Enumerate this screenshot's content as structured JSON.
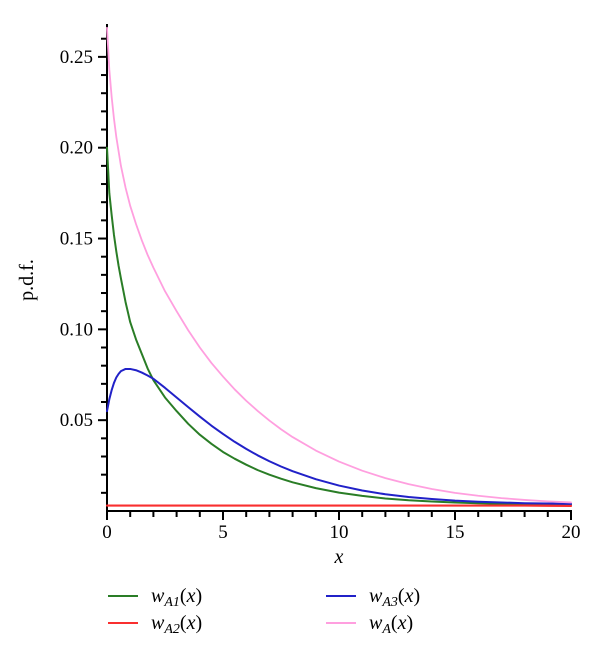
{
  "figure": {
    "background": "#ffffff"
  },
  "chart_data": {
    "type": "line",
    "title": "",
    "xlabel": "x",
    "ylabel": "p.d.f.",
    "xlim": [
      0,
      20
    ],
    "ylim": [
      0,
      0.267
    ],
    "grid": false,
    "legend_position": "below-plot, two columns",
    "axis_color": "#000000",
    "x_major_ticks": [
      0,
      5,
      10,
      15,
      20
    ],
    "x_tick_labels": [
      "0",
      "5",
      "10",
      "15",
      "20"
    ],
    "x_minor_step": 1,
    "y_major_ticks": [
      0.05,
      0.1,
      0.15,
      0.2,
      0.25
    ],
    "y_tick_labels": [
      "0.05",
      "0.10",
      "0.15",
      "0.20",
      "0.25"
    ],
    "y_minor_step": 0.01,
    "x": [
      0,
      0.1,
      0.2,
      0.3,
      0.4,
      0.5,
      0.6,
      0.8,
      1,
      1.25,
      1.5,
      1.75,
      2,
      2.5,
      3,
      3.5,
      4,
      4.5,
      5,
      5.5,
      6,
      6.5,
      7,
      7.5,
      8,
      9,
      10,
      11,
      12,
      13,
      14,
      15,
      16,
      17,
      18,
      19,
      20
    ],
    "series": [
      {
        "id": "wA1",
        "name": "w_A1(x)",
        "label_base": "w",
        "label_sub": "A1",
        "arg_open": "(",
        "arg_var": "x",
        "arg_close": ")",
        "color": "#2a7d26",
        "stroke_width": 2,
        "values": [
          0.2,
          0.175,
          0.163,
          0.152,
          0.143,
          0.135,
          0.128,
          0.115,
          0.104,
          0.0945,
          0.0865,
          0.0785,
          0.072,
          0.0625,
          0.055,
          0.048,
          0.042,
          0.037,
          0.0325,
          0.0288,
          0.0255,
          0.0225,
          0.02,
          0.0178,
          0.0158,
          0.0126,
          0.0101,
          0.0083,
          0.0069,
          0.0059,
          0.0052,
          0.0047,
          0.0043,
          0.004,
          0.0038,
          0.0037,
          0.0036
        ]
      },
      {
        "id": "wA2",
        "name": "w_A2(x)",
        "label_base": "w",
        "label_sub": "A2",
        "arg_open": "(",
        "arg_var": "x",
        "arg_close": ")",
        "color": "#f92f2f",
        "stroke_width": 2.2,
        "values": [
          0.003,
          0.003,
          0.003,
          0.003,
          0.003,
          0.003,
          0.003,
          0.003,
          0.003,
          0.003,
          0.003,
          0.003,
          0.003,
          0.003,
          0.003,
          0.003,
          0.003,
          0.003,
          0.003,
          0.003,
          0.003,
          0.003,
          0.003,
          0.003,
          0.003,
          0.003,
          0.003,
          0.003,
          0.003,
          0.003,
          0.003,
          0.003,
          0.003,
          0.003,
          0.003,
          0.0029,
          0.0028
        ]
      },
      {
        "id": "wA3",
        "name": "w_A3(x)",
        "label_base": "w",
        "label_sub": "A3",
        "arg_open": "(",
        "arg_var": "x",
        "arg_close": ")",
        "color": "#2121c8",
        "stroke_width": 2,
        "values": [
          0.055,
          0.0615,
          0.0665,
          0.0705,
          0.0735,
          0.0755,
          0.077,
          0.0782,
          0.0782,
          0.0775,
          0.0762,
          0.0746,
          0.0728,
          0.0678,
          0.0625,
          0.0572,
          0.052,
          0.047,
          0.0424,
          0.0381,
          0.0342,
          0.0306,
          0.0274,
          0.0245,
          0.0219,
          0.0175,
          0.014,
          0.0113,
          0.0092,
          0.0077,
          0.0066,
          0.0057,
          0.0051,
          0.0047,
          0.0043,
          0.0041,
          0.0039
        ]
      },
      {
        "id": "wA",
        "name": "w_A(x)",
        "label_base": "w",
        "label_sub": "A",
        "arg_open": "(",
        "arg_var": "x",
        "arg_close": ")",
        "color": "#ff9fdf",
        "stroke_width": 1.8,
        "values": [
          0.266,
          0.243,
          0.228,
          0.216,
          0.206,
          0.198,
          0.19,
          0.178,
          0.168,
          0.158,
          0.149,
          0.141,
          0.134,
          0.121,
          0.11,
          0.0995,
          0.09,
          0.0815,
          0.074,
          0.067,
          0.0607,
          0.055,
          0.0498,
          0.045,
          0.0407,
          0.0333,
          0.0272,
          0.0222,
          0.0181,
          0.0148,
          0.0121,
          0.01,
          0.0084,
          0.0071,
          0.0061,
          0.0053,
          0.0047
        ]
      }
    ]
  }
}
